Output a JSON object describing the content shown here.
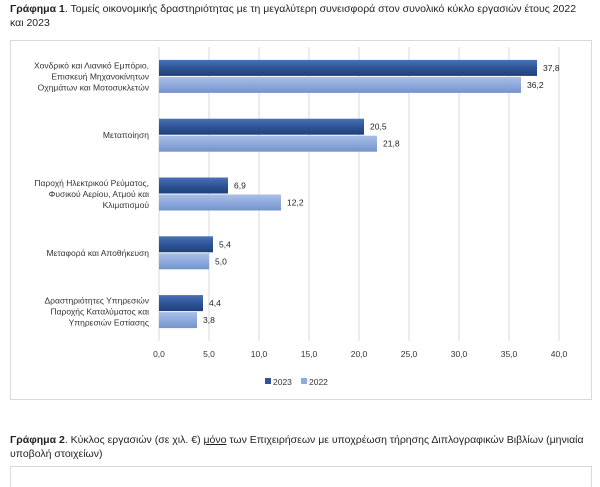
{
  "caption1": {
    "label": "Γράφημα 1",
    "text": ". Τομείς οικονομικής δραστηριότητας με τη μεγαλύτερη συνεισφορά στον συνολικό κύκλο εργασιών έτους 2022 και 2023"
  },
  "caption2": {
    "label": "Γράφημα 2",
    "text_before": ". Κύκλος εργασιών (σε χιλ. €) ",
    "underlined": "μόνο",
    "text_after": " των Επιχειρήσεων με υποχρέωση τήρησης Διπλογραφικών Βιβλίων (μηνιαία υποβολή στοιχείων)"
  },
  "chart_data": {
    "type": "bar",
    "orientation": "horizontal",
    "categories": [
      [
        "Χονδρικό και Λιανικό Εμπόριο,",
        "Επισκευή Μηχανοκίνητων",
        "Οχημάτων και Μοτοσυκλετών"
      ],
      [
        "Μεταποίηση"
      ],
      [
        "Παροχή Ηλεκτρικού Ρεύματος,",
        "Φυσικού Αερίου, Ατμού και",
        "Κλιματισμού"
      ],
      [
        "Μεταφορά και Αποθήκευση"
      ],
      [
        "Δραστηριότητες Υπηρεσιών",
        "Παροχής Καταλύματος και",
        "Υπηρεσιών Εστίασης"
      ]
    ],
    "series": [
      {
        "name": "2023",
        "values": [
          37.8,
          20.5,
          6.9,
          5.4,
          4.4
        ],
        "labels": [
          "37,8",
          "20,5",
          "6,9",
          "5,4",
          "4,4"
        ],
        "color": "#2f5597"
      },
      {
        "name": "2022",
        "values": [
          36.2,
          21.8,
          12.2,
          5.0,
          3.8
        ],
        "labels": [
          "36,2",
          "21,8",
          "12,2",
          "5,0",
          "3,8"
        ],
        "color": "#8faadc"
      }
    ],
    "xlim": [
      0,
      40
    ],
    "xticks": [
      0,
      5,
      10,
      15,
      20,
      25,
      30,
      35,
      40
    ],
    "xtick_labels": [
      "0,0",
      "5,0",
      "10,0",
      "15,0",
      "20,0",
      "25,0",
      "30,0",
      "35,0",
      "40,0"
    ],
    "grid": "vertical",
    "legend_position": "bottom"
  }
}
